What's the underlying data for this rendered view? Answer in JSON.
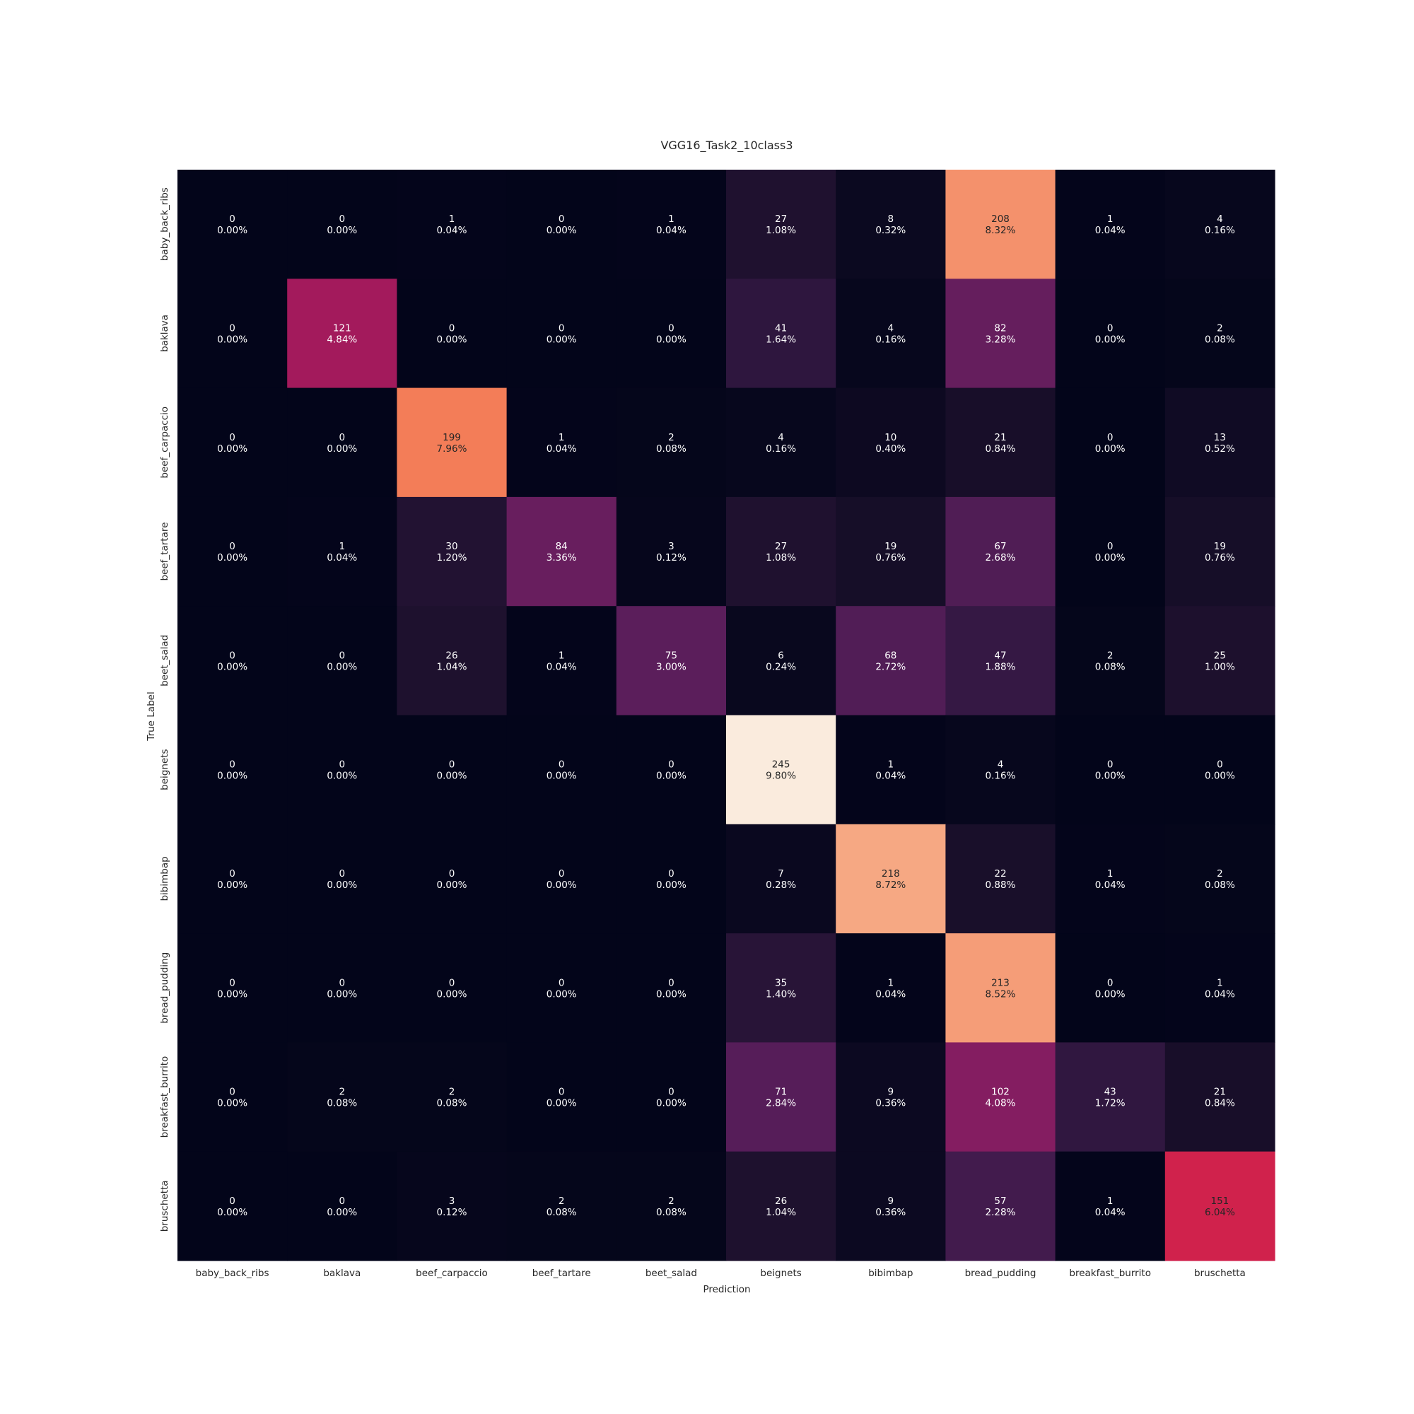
{
  "chart_data": {
    "type": "heatmap",
    "title": "VGG16_Task2_10class3",
    "xlabel": "Prediction",
    "ylabel": "True Label",
    "x_categories": [
      "baby_back_ribs",
      "baklava",
      "beef_carpaccio",
      "beef_tartare",
      "beet_salad",
      "beignets",
      "bibimbap",
      "bread_pudding",
      "breakfast_burrito",
      "bruschetta"
    ],
    "y_categories": [
      "baby_back_ribs",
      "baklava",
      "beef_carpaccio",
      "beef_tartare",
      "beet_salad",
      "beignets",
      "bibimbap",
      "bread_pudding",
      "breakfast_burrito",
      "bruschetta"
    ],
    "values": [
      [
        0,
        0,
        1,
        0,
        1,
        27,
        8,
        208,
        1,
        4
      ],
      [
        0,
        121,
        0,
        0,
        0,
        41,
        4,
        82,
        0,
        2
      ],
      [
        0,
        0,
        199,
        1,
        2,
        4,
        10,
        21,
        0,
        13
      ],
      [
        0,
        1,
        30,
        84,
        3,
        27,
        19,
        67,
        0,
        19
      ],
      [
        0,
        0,
        26,
        1,
        75,
        6,
        68,
        47,
        2,
        25
      ],
      [
        0,
        0,
        0,
        0,
        0,
        245,
        1,
        4,
        0,
        0
      ],
      [
        0,
        0,
        0,
        0,
        0,
        7,
        218,
        22,
        1,
        2
      ],
      [
        0,
        0,
        0,
        0,
        0,
        35,
        1,
        213,
        0,
        1
      ],
      [
        0,
        2,
        2,
        0,
        0,
        71,
        9,
        102,
        43,
        21
      ],
      [
        0,
        0,
        3,
        2,
        2,
        26,
        9,
        57,
        1,
        151
      ]
    ],
    "percentages": [
      [
        "0.00%",
        "0.00%",
        "0.04%",
        "0.00%",
        "0.04%",
        "1.08%",
        "0.32%",
        "8.32%",
        "0.04%",
        "0.16%"
      ],
      [
        "0.00%",
        "4.84%",
        "0.00%",
        "0.00%",
        "0.00%",
        "1.64%",
        "0.16%",
        "3.28%",
        "0.00%",
        "0.08%"
      ],
      [
        "0.00%",
        "0.00%",
        "7.96%",
        "0.04%",
        "0.08%",
        "0.16%",
        "0.40%",
        "0.84%",
        "0.00%",
        "0.52%"
      ],
      [
        "0.00%",
        "0.04%",
        "1.20%",
        "3.36%",
        "0.12%",
        "1.08%",
        "0.76%",
        "2.68%",
        "0.00%",
        "0.76%"
      ],
      [
        "0.00%",
        "0.00%",
        "1.04%",
        "0.04%",
        "3.00%",
        "0.24%",
        "2.72%",
        "1.88%",
        "0.08%",
        "1.00%"
      ],
      [
        "0.00%",
        "0.00%",
        "0.00%",
        "0.00%",
        "0.00%",
        "9.80%",
        "0.04%",
        "0.16%",
        "0.00%",
        "0.00%"
      ],
      [
        "0.00%",
        "0.00%",
        "0.00%",
        "0.00%",
        "0.00%",
        "0.28%",
        "8.72%",
        "0.88%",
        "0.04%",
        "0.08%"
      ],
      [
        "0.00%",
        "0.00%",
        "0.00%",
        "0.00%",
        "0.00%",
        "1.40%",
        "0.04%",
        "8.52%",
        "0.00%",
        "0.04%"
      ],
      [
        "0.00%",
        "0.08%",
        "0.08%",
        "0.00%",
        "0.00%",
        "2.84%",
        "0.36%",
        "4.08%",
        "1.72%",
        "0.84%"
      ],
      [
        "0.00%",
        "0.00%",
        "0.12%",
        "0.08%",
        "0.08%",
        "1.04%",
        "0.36%",
        "2.28%",
        "0.04%",
        "6.04%"
      ]
    ],
    "colormap": "rocket",
    "value_range": [
      0,
      245
    ],
    "colorbar": false,
    "grid": false
  }
}
